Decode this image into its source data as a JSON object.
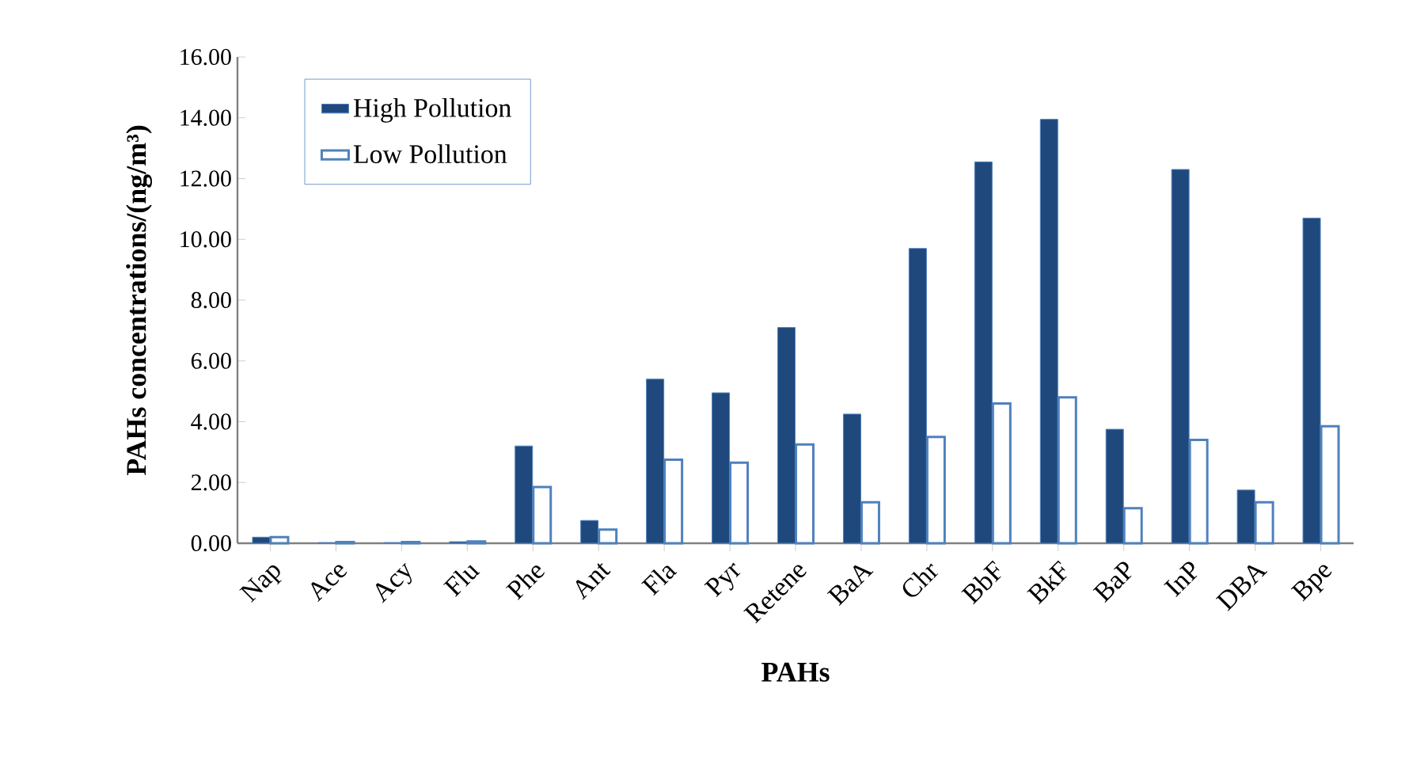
{
  "chart_data": {
    "type": "bar",
    "xlabel": "PAHs",
    "ylabel": "PAHs concentrations/(ng/m³)",
    "categories": [
      "Nap",
      "Ace",
      "Acy",
      "Flu",
      "Phe",
      "Ant",
      "Fla",
      "Pyr",
      "Retene",
      "BaA",
      "Chr",
      "BbF",
      "BkF",
      "BaP",
      "InP",
      "DBA",
      "Bpe"
    ],
    "series": [
      {
        "name": "High Pollution",
        "color": "#1f497d",
        "values": [
          0.2,
          0.02,
          0.02,
          0.05,
          3.2,
          0.75,
          5.4,
          4.95,
          7.1,
          4.25,
          9.7,
          12.55,
          13.95,
          3.75,
          12.3,
          1.75,
          10.7
        ]
      },
      {
        "name": "Low Pollution",
        "color": "#4f81bd",
        "values": [
          0.2,
          0.04,
          0.04,
          0.06,
          1.85,
          0.45,
          2.75,
          2.65,
          3.25,
          1.35,
          3.5,
          4.6,
          4.8,
          1.15,
          3.4,
          1.35,
          3.85
        ]
      }
    ],
    "ylim": [
      0,
      16
    ],
    "yticks": [
      {
        "value": 0,
        "label": "0.00"
      },
      {
        "value": 2,
        "label": "2.00"
      },
      {
        "value": 4,
        "label": "4.00"
      },
      {
        "value": 6,
        "label": "6.00"
      },
      {
        "value": 8,
        "label": "8.00"
      },
      {
        "value": 10,
        "label": "10.00"
      },
      {
        "value": 12,
        "label": "12.00"
      },
      {
        "value": 14,
        "label": "14.00"
      },
      {
        "value": 16,
        "label": "16.00"
      }
    ],
    "grid": false,
    "legend": "top left"
  }
}
